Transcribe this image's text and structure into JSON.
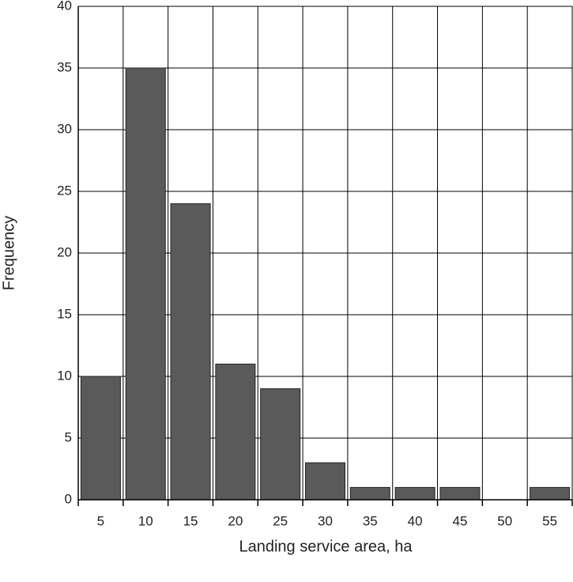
{
  "chart_data": {
    "type": "bar",
    "x_label": "Landing service area, ha",
    "y_label": "Frequency",
    "categories": [
      "5",
      "10",
      "15",
      "20",
      "25",
      "30",
      "35",
      "40",
      "45",
      "50",
      "55"
    ],
    "values": [
      10,
      35,
      24,
      11,
      9,
      3,
      1,
      1,
      1,
      0,
      1
    ],
    "color": "#5a5a5a",
    "ylim": [
      0,
      40
    ],
    "yticks": [
      0,
      5,
      10,
      15,
      20,
      25,
      30,
      35,
      40
    ],
    "grid": true
  }
}
